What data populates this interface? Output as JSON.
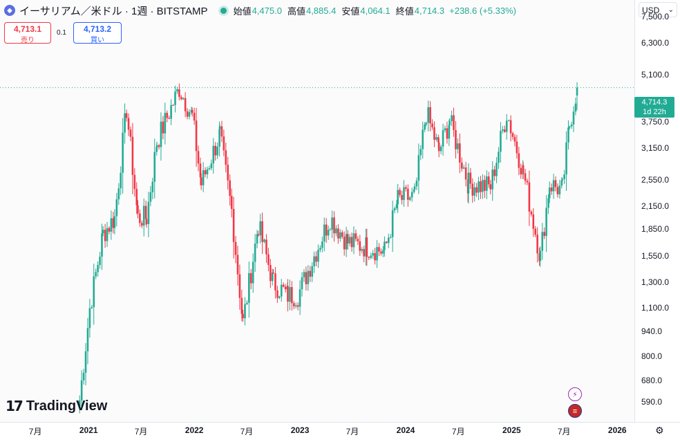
{
  "header": {
    "symbol_title": "イーサリアム／米ドル · 1週 · BITSTAMP",
    "ohlc": [
      {
        "label": "始値",
        "value": "4,475.0"
      },
      {
        "label": "高値",
        "value": "4,885.4"
      },
      {
        "label": "安値",
        "value": "4,064.1"
      },
      {
        "label": "終値",
        "value": "4,714.3"
      }
    ],
    "change": "+238.6 (+5.33%)"
  },
  "quotes": {
    "sell_price": "4,713.1",
    "sell_label": "売り",
    "spread": "0.1",
    "buy_price": "4,713.2",
    "buy_label": "買い"
  },
  "currency": "USD",
  "last_price": {
    "value": "4,714.3",
    "countdown": "1d 22h"
  },
  "logo_text": "TradingView",
  "colors": {
    "up": "#22ab94",
    "down": "#f23645",
    "background": "#fbfbfb"
  },
  "chart_data": {
    "type": "candlestick",
    "title": "イーサリアム／米ドル · 1週 · BITSTAMP",
    "scale": "log",
    "ylim": [
      520,
      8400
    ],
    "y_ticks": [
      "7,500.0",
      "6,300.0",
      "5,100.0",
      "3,750.0",
      "3,150.0",
      "2,550.0",
      "2,150.0",
      "1,850.0",
      "1,550.0",
      "1,300.0",
      "1,100.0",
      "940.0",
      "800.0",
      "680.0",
      "590.0"
    ],
    "y_tick_values": [
      7500,
      6300,
      5100,
      3750,
      3150,
      2550,
      2150,
      1850,
      1550,
      1300,
      1100,
      940,
      800,
      680,
      590
    ],
    "x_ticks": [
      {
        "label": "7月",
        "date": "2020-07-01",
        "year": false
      },
      {
        "label": "2021",
        "date": "2021-01-01",
        "year": true
      },
      {
        "label": "7月",
        "date": "2021-07-01",
        "year": false
      },
      {
        "label": "2022",
        "date": "2022-01-01",
        "year": true
      },
      {
        "label": "7月",
        "date": "2022-07-01",
        "year": false
      },
      {
        "label": "2023",
        "date": "2023-01-01",
        "year": true
      },
      {
        "label": "7月",
        "date": "2023-07-01",
        "year": false
      },
      {
        "label": "2024",
        "date": "2024-01-01",
        "year": true
      },
      {
        "label": "7月",
        "date": "2024-07-01",
        "year": false
      },
      {
        "label": "2025",
        "date": "2025-01-01",
        "year": true
      },
      {
        "label": "7月",
        "date": "2025-07-01",
        "year": false
      },
      {
        "label": "2026",
        "date": "2026-01-01",
        "year": true
      }
    ],
    "time_range": [
      "2020-03-01",
      "2026-03-01"
    ],
    "weekly_closes_anchors": [
      {
        "date": "2020-12-01",
        "close": 600
      },
      {
        "date": "2021-01-05",
        "close": 1100
      },
      {
        "date": "2021-02-20",
        "close": 1800
      },
      {
        "date": "2021-04-01",
        "close": 2000
      },
      {
        "date": "2021-05-12",
        "close": 4100
      },
      {
        "date": "2021-06-20",
        "close": 2000
      },
      {
        "date": "2021-07-20",
        "close": 2000
      },
      {
        "date": "2021-08-25",
        "close": 3300
      },
      {
        "date": "2021-11-10",
        "close": 4700
      },
      {
        "date": "2021-12-25",
        "close": 3900
      },
      {
        "date": "2022-01-25",
        "close": 2500
      },
      {
        "date": "2022-03-30",
        "close": 3450
      },
      {
        "date": "2022-05-10",
        "close": 2100
      },
      {
        "date": "2022-06-18",
        "close": 1000
      },
      {
        "date": "2022-08-10",
        "close": 1900
      },
      {
        "date": "2022-10-01",
        "close": 1300
      },
      {
        "date": "2022-11-20",
        "close": 1200
      },
      {
        "date": "2022-12-25",
        "close": 1200
      },
      {
        "date": "2023-04-15",
        "close": 2000
      },
      {
        "date": "2023-06-15",
        "close": 1700
      },
      {
        "date": "2023-08-20",
        "close": 1650
      },
      {
        "date": "2023-10-20",
        "close": 1600
      },
      {
        "date": "2023-12-05",
        "close": 2250
      },
      {
        "date": "2024-02-01",
        "close": 2300
      },
      {
        "date": "2024-03-12",
        "close": 4000
      },
      {
        "date": "2024-04-25",
        "close": 3100
      },
      {
        "date": "2024-06-01",
        "close": 3800
      },
      {
        "date": "2024-08-05",
        "close": 2500
      },
      {
        "date": "2024-10-20",
        "close": 2450
      },
      {
        "date": "2024-12-15",
        "close": 4000
      },
      {
        "date": "2025-02-10",
        "close": 2700
      },
      {
        "date": "2025-04-10",
        "close": 1550
      },
      {
        "date": "2025-05-12",
        "close": 2500
      },
      {
        "date": "2025-06-25",
        "close": 2400
      },
      {
        "date": "2025-07-20",
        "close": 3700
      },
      {
        "date": "2025-08-15",
        "close": 4714.3
      }
    ],
    "last_candle": {
      "open": 4475.0,
      "high": 4885.4,
      "low": 4064.1,
      "close": 4714.3
    }
  }
}
